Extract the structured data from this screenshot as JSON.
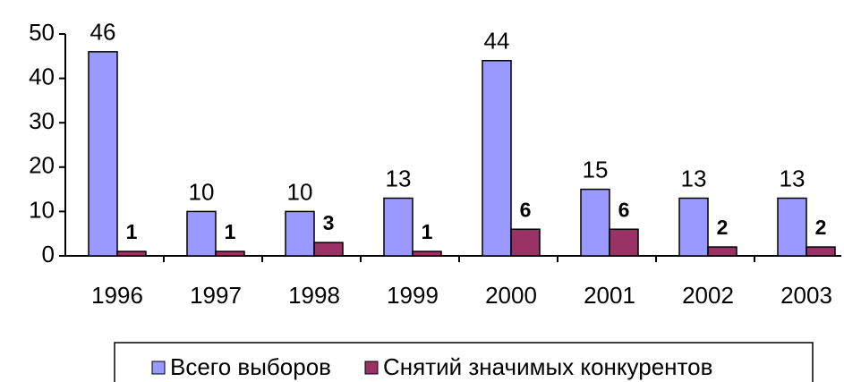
{
  "chart_data": {
    "type": "bar",
    "categories": [
      "1996",
      "1997",
      "1998",
      "1999",
      "2000",
      "2001",
      "2002",
      "2003"
    ],
    "series": [
      {
        "name": "Всего выборов",
        "color": "#9999ff",
        "values": [
          46,
          10,
          10,
          13,
          44,
          15,
          13,
          13
        ]
      },
      {
        "name": "Снятий значимых конкурентов",
        "color": "#993366",
        "values": [
          1,
          1,
          3,
          1,
          6,
          6,
          2,
          2
        ]
      }
    ],
    "ylim": [
      0,
      50
    ],
    "yticks": [
      0,
      10,
      20,
      30,
      40,
      50
    ],
    "grid": false,
    "legend": "bottom"
  }
}
